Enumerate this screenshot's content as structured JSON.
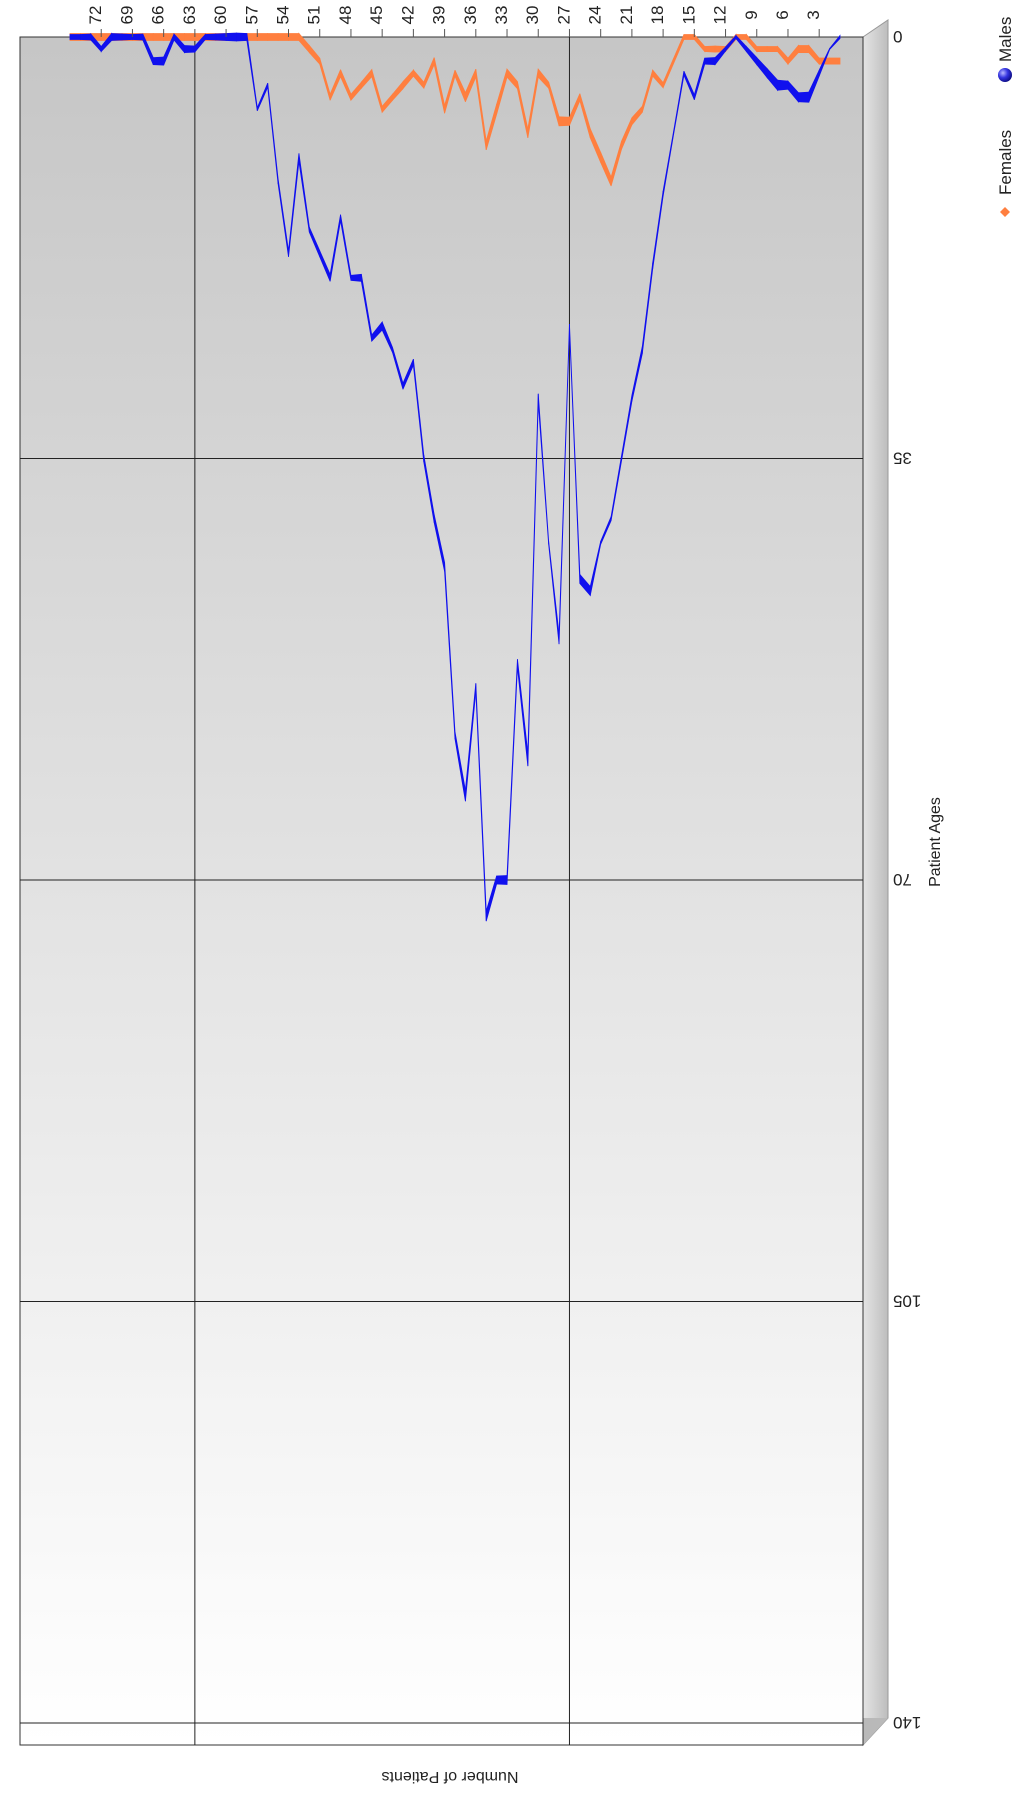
{
  "chart_data": {
    "type": "line",
    "title": "",
    "xlabel": "Patient Ages",
    "ylabel": "Number of Patients",
    "x": [
      1,
      2,
      3,
      4,
      5,
      6,
      7,
      8,
      9,
      10,
      11,
      12,
      13,
      14,
      15,
      16,
      17,
      18,
      19,
      20,
      21,
      22,
      23,
      24,
      25,
      26,
      27,
      28,
      29,
      30,
      31,
      32,
      33,
      34,
      35,
      36,
      37,
      38,
      39,
      40,
      41,
      42,
      43,
      44,
      45,
      46,
      47,
      48,
      49,
      50,
      51,
      52,
      53,
      54,
      55,
      56,
      57,
      58,
      59,
      60,
      61,
      62,
      63,
      64,
      65,
      66,
      67,
      68,
      69,
      70,
      71,
      72,
      73,
      74,
      75
    ],
    "x_ticks": [
      3,
      6,
      9,
      12,
      15,
      18,
      21,
      24,
      27,
      30,
      33,
      36,
      39,
      42,
      45,
      48,
      51,
      54,
      57,
      60,
      63,
      66,
      69,
      72
    ],
    "x_tick_labels": [
      "3",
      "6",
      "9",
      "12",
      "15",
      "18",
      "21",
      "24",
      "27",
      "30",
      "33",
      "36",
      "39",
      "42",
      "45",
      "48",
      "51",
      "54",
      "57",
      "60",
      "63",
      "66",
      "69",
      "72"
    ],
    "ylim": [
      0,
      140
    ],
    "y_ticks": [
      0,
      35,
      70,
      105,
      140
    ],
    "y_tick_labels": [
      "0",
      "35",
      "70",
      "105",
      "140"
    ],
    "grid": true,
    "orientation": "rotated-180",
    "legend_position": "right",
    "series": [
      {
        "name": "Males",
        "color": "#1010ee",
        "values": [
          0,
          1,
          3,
          5,
          5,
          4,
          4,
          3,
          2,
          1,
          0,
          1,
          2,
          2,
          5,
          3,
          8,
          13,
          19,
          26,
          30,
          35,
          40,
          42,
          46,
          45,
          24,
          50,
          42,
          30,
          60,
          52,
          70,
          70,
          73,
          54,
          63,
          58,
          44,
          40,
          35,
          27,
          29,
          26,
          24,
          25,
          20,
          20,
          15,
          20,
          18,
          16,
          10,
          18,
          12,
          4,
          6,
          0,
          0,
          0,
          0,
          0,
          1,
          1,
          0,
          2,
          2,
          0,
          0,
          0,
          0,
          1,
          0,
          0,
          0
        ],
        "thickness": [
          3,
          1,
          6,
          10,
          9,
          8,
          10,
          9,
          7,
          5,
          3,
          4,
          7,
          6,
          5,
          4,
          3,
          5,
          6,
          7,
          6,
          5,
          4,
          3,
          9,
          9,
          4,
          10,
          3,
          9,
          13,
          8,
          9,
          8,
          10,
          8,
          11,
          7,
          9,
          8,
          7,
          6,
          6,
          5,
          8,
          6,
          7,
          5,
          6,
          7,
          6,
          5,
          8,
          6,
          5,
          4,
          3,
          7,
          8,
          7,
          6,
          5,
          6,
          7,
          6,
          8,
          7,
          6,
          5,
          6,
          7,
          5,
          6,
          5,
          5
        ]
      },
      {
        "name": "Females",
        "color": "#ff7f3f",
        "values": [
          2,
          2,
          2,
          1,
          1,
          2,
          1,
          1,
          1,
          0,
          0,
          1,
          1,
          1,
          0,
          0,
          2,
          4,
          3,
          6,
          7,
          9,
          12,
          10,
          8,
          5,
          7,
          7,
          4,
          3,
          8,
          4,
          3,
          6,
          9,
          3,
          5,
          3,
          6,
          2,
          4,
          3,
          4,
          5,
          6,
          3,
          4,
          5,
          3,
          5,
          2,
          1,
          0,
          0,
          0,
          0,
          0,
          0,
          0,
          0,
          0,
          0,
          0,
          0,
          0,
          0,
          0,
          0,
          0,
          0,
          0,
          0,
          0,
          0,
          0
        ],
        "thickness": [
          6,
          6,
          6,
          7,
          7,
          6,
          5,
          5,
          5,
          5,
          5,
          5,
          6,
          5,
          5,
          5,
          5,
          5,
          6,
          6,
          7,
          8,
          9,
          10,
          9,
          7,
          8,
          9,
          6,
          8,
          9,
          7,
          8,
          10,
          9,
          8,
          9,
          6,
          8,
          7,
          6,
          6,
          7,
          6,
          6,
          7,
          6,
          6,
          7,
          6,
          6,
          7,
          7,
          7,
          7,
          7,
          7,
          7,
          7,
          7,
          7,
          7,
          7,
          7,
          7,
          7,
          7,
          7,
          7,
          7,
          7,
          7,
          7,
          7,
          7
        ]
      }
    ]
  },
  "legend": {
    "items": [
      {
        "label": "Females",
        "color": "#ff7f3f",
        "icon": "diamond-marker-icon"
      },
      {
        "label": "Males",
        "color": "#1010ee",
        "icon": "sphere-marker-icon"
      }
    ]
  }
}
